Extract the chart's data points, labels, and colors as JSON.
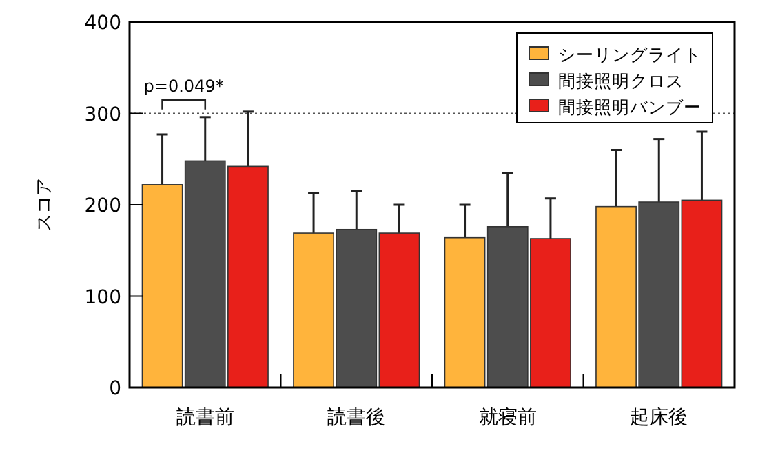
{
  "chart_data": {
    "type": "bar",
    "ylabel": "スコア",
    "categories": [
      "読書前",
      "読書後",
      "就寝前",
      "起床後"
    ],
    "series": [
      {
        "name": "シーリングライト",
        "color": "#ffb43c",
        "values": [
          222,
          169,
          164,
          198
        ],
        "errors": [
          [
            222,
            277
          ],
          [
            169,
            213
          ],
          [
            164,
            200
          ],
          [
            198,
            260
          ]
        ]
      },
      {
        "name": "間接照明クロス",
        "color": "#4d4d4d",
        "values": [
          248,
          173,
          176,
          203
        ],
        "errors": [
          [
            248,
            296
          ],
          [
            173,
            215
          ],
          [
            176,
            235
          ],
          [
            203,
            272
          ]
        ]
      },
      {
        "name": "間接照明バンブー",
        "color": "#e8201a",
        "values": [
          242,
          169,
          163,
          205
        ],
        "errors": [
          [
            242,
            302
          ],
          [
            169,
            200
          ],
          [
            163,
            207
          ],
          [
            205,
            280
          ]
        ]
      }
    ],
    "ylim": [
      0,
      400
    ],
    "yticks": [
      0,
      100,
      200,
      300,
      400
    ],
    "ref_lines": [
      {
        "axis": "y",
        "value": 300,
        "line_style": "dotted",
        "color": "#555555"
      }
    ],
    "annotations": [
      "p=0.049*"
    ],
    "legend": "top right",
    "grid": false
  }
}
